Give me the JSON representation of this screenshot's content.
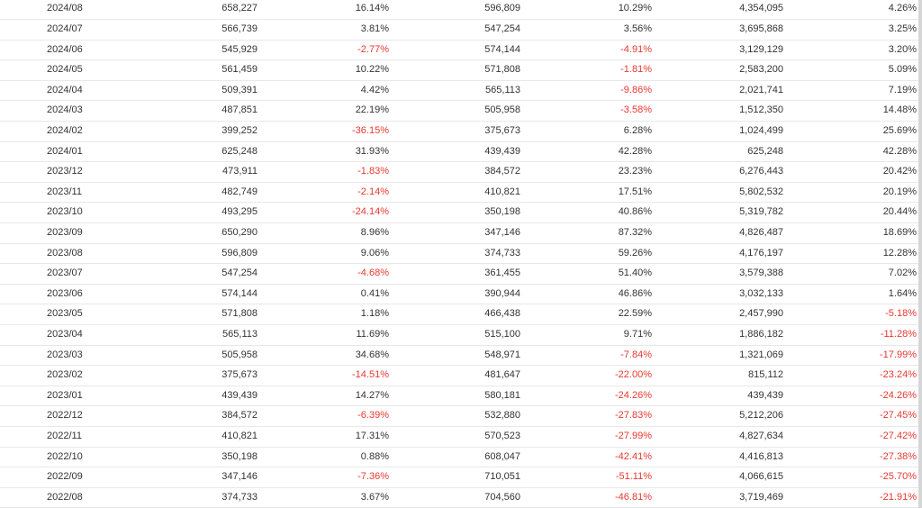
{
  "table": {
    "rows": [
      [
        "2024/08",
        "658,227",
        "16.14%",
        "596,809",
        "10.29%",
        "4,354,095",
        "4.26%"
      ],
      [
        "2024/07",
        "566,739",
        "3.81%",
        "547,254",
        "3.56%",
        "3,695,868",
        "3.25%"
      ],
      [
        "2024/06",
        "545,929",
        "-2.77%",
        "574,144",
        "-4.91%",
        "3,129,129",
        "3.20%"
      ],
      [
        "2024/05",
        "561,459",
        "10.22%",
        "571,808",
        "-1.81%",
        "2,583,200",
        "5.09%"
      ],
      [
        "2024/04",
        "509,391",
        "4.42%",
        "565,113",
        "-9.86%",
        "2,021,741",
        "7.19%"
      ],
      [
        "2024/03",
        "487,851",
        "22.19%",
        "505,958",
        "-3.58%",
        "1,512,350",
        "14.48%"
      ],
      [
        "2024/02",
        "399,252",
        "-36.15%",
        "375,673",
        "6.28%",
        "1,024,499",
        "25.69%"
      ],
      [
        "2024/01",
        "625,248",
        "31.93%",
        "439,439",
        "42.28%",
        "625,248",
        "42.28%"
      ],
      [
        "2023/12",
        "473,911",
        "-1.83%",
        "384,572",
        "23.23%",
        "6,276,443",
        "20.42%"
      ],
      [
        "2023/11",
        "482,749",
        "-2.14%",
        "410,821",
        "17.51%",
        "5,802,532",
        "20.19%"
      ],
      [
        "2023/10",
        "493,295",
        "-24.14%",
        "350,198",
        "40.86%",
        "5,319,782",
        "20.44%"
      ],
      [
        "2023/09",
        "650,290",
        "8.96%",
        "347,146",
        "87.32%",
        "4,826,487",
        "18.69%"
      ],
      [
        "2023/08",
        "596,809",
        "9.06%",
        "374,733",
        "59.26%",
        "4,176,197",
        "12.28%"
      ],
      [
        "2023/07",
        "547,254",
        "-4.68%",
        "361,455",
        "51.40%",
        "3,579,388",
        "7.02%"
      ],
      [
        "2023/06",
        "574,144",
        "0.41%",
        "390,944",
        "46.86%",
        "3,032,133",
        "1.64%"
      ],
      [
        "2023/05",
        "571,808",
        "1.18%",
        "466,438",
        "22.59%",
        "2,457,990",
        "-5.18%"
      ],
      [
        "2023/04",
        "565,113",
        "11.69%",
        "515,100",
        "9.71%",
        "1,886,182",
        "-11.28%"
      ],
      [
        "2023/03",
        "505,958",
        "34.68%",
        "548,971",
        "-7.84%",
        "1,321,069",
        "-17.99%"
      ],
      [
        "2023/02",
        "375,673",
        "-14.51%",
        "481,647",
        "-22.00%",
        "815,112",
        "-23.24%"
      ],
      [
        "2023/01",
        "439,439",
        "14.27%",
        "580,181",
        "-24.26%",
        "439,439",
        "-24.26%"
      ],
      [
        "2022/12",
        "384,572",
        "-6.39%",
        "532,880",
        "-27.83%",
        "5,212,206",
        "-27.45%"
      ],
      [
        "2022/11",
        "410,821",
        "17.31%",
        "570,523",
        "-27.99%",
        "4,827,634",
        "-27.42%"
      ],
      [
        "2022/10",
        "350,198",
        "0.88%",
        "608,047",
        "-42.41%",
        "4,416,813",
        "-27.38%"
      ],
      [
        "2022/09",
        "347,146",
        "-7.36%",
        "710,051",
        "-51.11%",
        "4,066,615",
        "-25.70%"
      ],
      [
        "2022/08",
        "374,733",
        "3.67%",
        "704,560",
        "-46.81%",
        "3,719,469",
        "-21.91%"
      ]
    ]
  },
  "colors": {
    "negative": "#e8382f",
    "text": "#333333",
    "divider": "#e8e8e8"
  }
}
